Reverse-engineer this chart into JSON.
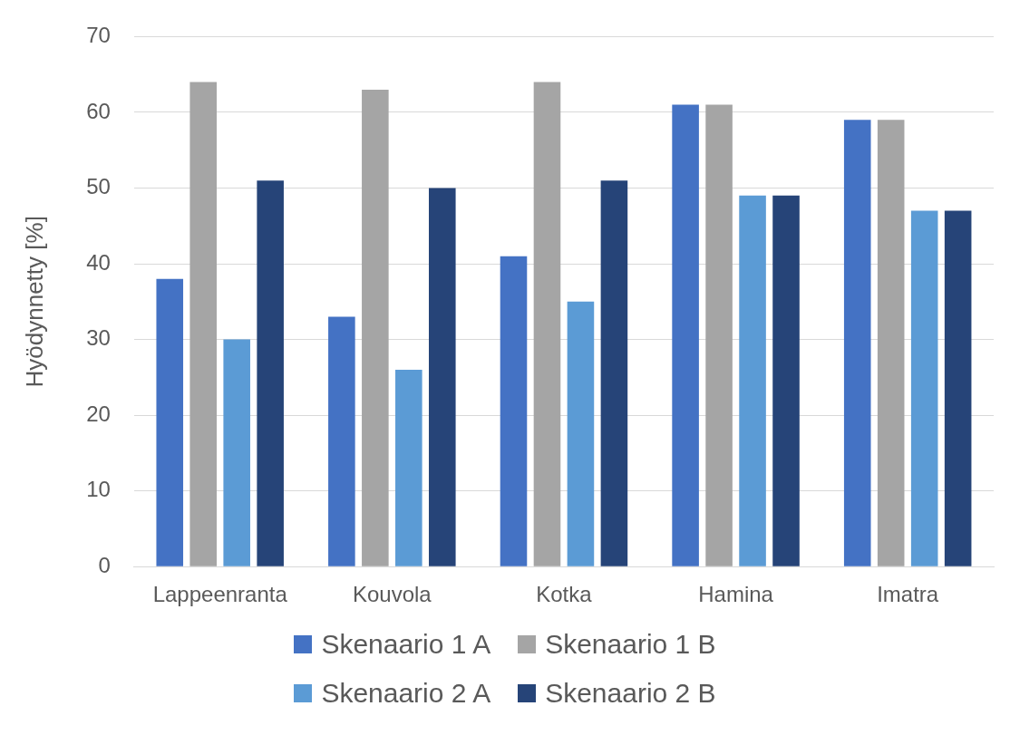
{
  "chart_data": {
    "type": "bar",
    "ylabel": "Hyödynnetty [%]",
    "categories": [
      "Lappeenranta",
      "Kouvola",
      "Kotka",
      "Hamina",
      "Imatra"
    ],
    "series": [
      {
        "name": "Skenaario 1 A",
        "color": "#4472c4",
        "values": [
          38,
          33,
          41,
          61,
          59
        ]
      },
      {
        "name": "Skenaario 1 B",
        "color": "#a5a5a5",
        "values": [
          64,
          63,
          64,
          61,
          59
        ]
      },
      {
        "name": "Skenaario 2 A",
        "color": "#5b9bd5",
        "values": [
          30,
          26,
          35,
          49,
          47
        ]
      },
      {
        "name": "Skenaario 2 B",
        "color": "#264478",
        "values": [
          51,
          50,
          51,
          49,
          47
        ]
      }
    ],
    "ylim": [
      0,
      70
    ],
    "yticks": [
      0,
      10,
      20,
      30,
      40,
      50,
      60,
      70
    ],
    "grid": "y",
    "legend": "bottom"
  }
}
